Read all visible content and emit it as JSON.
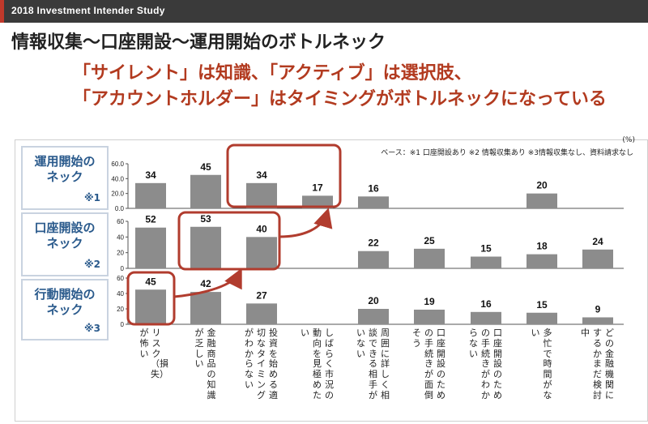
{
  "header": {
    "study": "2018 Investment Intender Study"
  },
  "title": "情報収集〜口座開設〜運用開始のボトルネック",
  "subtitle": [
    "「サイレント」は知識、「アクティブ」は選択肢、",
    "「アカウントホルダー」はタイミングがボトルネックになっている"
  ],
  "unit": "(%)",
  "base_note": "ベース：※1 口座開設あり ※2 情報収集あり ※3情報収集なし、資料請求なし",
  "row_labels": [
    {
      "line1": "運用開始の",
      "line2": "ネック",
      "note": "※1"
    },
    {
      "line1": "口座開設の",
      "line2": "ネック",
      "note": "※2"
    },
    {
      "line1": "行動開始の",
      "line2": "ネック",
      "note": "※3"
    }
  ],
  "colors": {
    "bar": "#8c8c8c",
    "highlight": "#b13c2e",
    "label_text": "#2a5a8c"
  },
  "chart_data": [
    {
      "type": "bar",
      "title": "運用開始のネック",
      "categories": [
        "リスク（損失）が怖い",
        "金融商品の知識が乏しい",
        "投資を始める適切なタイミングがわからない",
        "しばらく市況の動向を見極めたい",
        "周囲に詳しく相談できる相手がいない",
        "口座開設のための手続きが面倒そう",
        "口座開設のための手続きがわからない",
        "多忙で時間がない",
        "どの金融機関にするかまだ検討中"
      ],
      "values": [
        34,
        45,
        34,
        17,
        16,
        null,
        null,
        20,
        null
      ],
      "ylim": [
        0,
        60
      ],
      "yticks": [
        "0.0",
        "20.0",
        "40.0",
        "60.0"
      ],
      "highlighted": [
        2,
        3
      ]
    },
    {
      "type": "bar",
      "title": "口座開設のネック",
      "categories": [
        "リスク（損失）が怖い",
        "金融商品の知識が乏しい",
        "投資を始める適切なタイミングがわからない",
        "しばらく市況の動向を見極めたい",
        "周囲に詳しく相談できる相手がいない",
        "口座開設のための手続きが面倒そう",
        "口座開設のための手続きがわからない",
        "多忙で時間がない",
        "どの金融機関にするかまだ検討中"
      ],
      "values": [
        52,
        53,
        40,
        null,
        22,
        25,
        15,
        18,
        24
      ],
      "ylim": [
        0,
        60
      ],
      "yticks": [
        "0",
        "20",
        "40",
        "60"
      ],
      "highlighted": [
        1,
        2
      ]
    },
    {
      "type": "bar",
      "title": "行動開始のネック",
      "categories": [
        "リスク（損失）が怖い",
        "金融商品の知識が乏しい",
        "投資を始める適切なタイミングがわからない",
        "しばらく市況の動向を見極めたい",
        "周囲に詳しく相談できる相手がいない",
        "口座開設のための手続きが面倒そう",
        "口座開設のための手続きがわからない",
        "多忙で時間がない",
        "どの金融機関にするかまだ検討中"
      ],
      "values": [
        45,
        42,
        27,
        null,
        20,
        19,
        16,
        15,
        9
      ],
      "ylim": [
        0,
        60
      ],
      "yticks": [
        "0",
        "20",
        "40",
        "60"
      ],
      "highlighted": [
        0
      ]
    }
  ],
  "category_labels": [
    {
      "col1": "リスク（損失）",
      "col2": "が怖い"
    },
    {
      "col1": "金融商品の知識",
      "col2": "が乏しい"
    },
    {
      "col1": "投資を始める適",
      "col2": "切なタイミング",
      "col3": "がわからない"
    },
    {
      "col1": "しばらく市況の",
      "col2": "動向を見極めた",
      "col3": "い"
    },
    {
      "col1": "周囲に詳しく相",
      "col2": "談できる相手が",
      "col3": "いない"
    },
    {
      "col1": "口座開設のため",
      "col2": "の手続きが面倒",
      "col3": "そう"
    },
    {
      "col1": "口座開設のため",
      "col2": "の手続きがわか",
      "col3": "らない"
    },
    {
      "col1": "多忙で時間がな",
      "col2": "い"
    },
    {
      "col1": "どの金融機関に",
      "col2": "するかまだ検討",
      "col3": "中"
    }
  ]
}
